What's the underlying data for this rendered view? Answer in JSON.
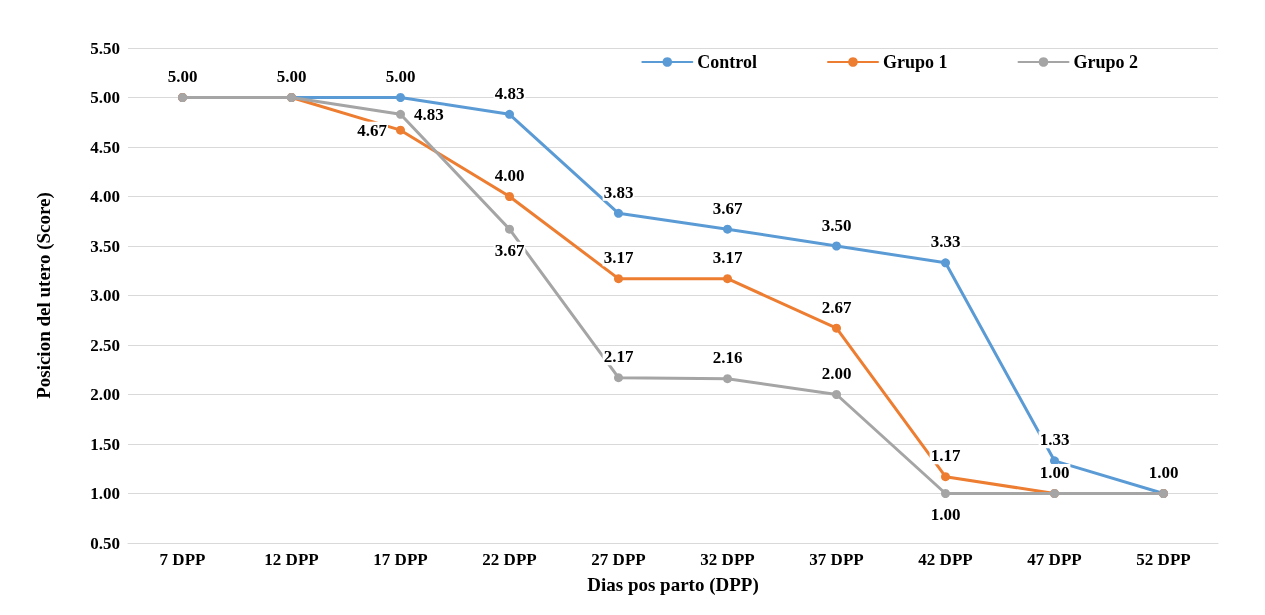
{
  "chart_data": {
    "type": "line",
    "xlabel": "Dias pos parto (DPP)",
    "ylabel": "Posicion del utero (Score)",
    "categories": [
      "7 DPP",
      "12 DPP",
      "17 DPP",
      "22 DPP",
      "27 DPP",
      "32 DPP",
      "37 DPP",
      "42 DPP",
      "47 DPP",
      "52 DPP"
    ],
    "series": [
      {
        "name": "Control",
        "color": "#5b9bd5",
        "values": [
          5.0,
          5.0,
          5.0,
          4.83,
          3.83,
          3.67,
          3.5,
          3.33,
          1.33,
          1.0
        ],
        "value_labels": [
          "5.00",
          "5.00",
          "5.00",
          "4.83",
          "3.83",
          "3.67",
          "3.50",
          "3.33",
          "1.33",
          "1.00"
        ]
      },
      {
        "name": "Grupo 1",
        "color": "#ed7d31",
        "values": [
          5.0,
          5.0,
          4.67,
          4.0,
          3.17,
          3.17,
          2.67,
          1.17,
          1.0,
          1.0
        ],
        "value_labels": [
          null,
          null,
          "4.67",
          "4.00",
          "3.17",
          "3.17",
          "2.67",
          "1.17",
          "1.00",
          null
        ]
      },
      {
        "name": "Grupo 2",
        "color": "#a5a5a5",
        "values": [
          5.0,
          5.0,
          4.83,
          3.67,
          2.17,
          2.16,
          2.0,
          1.0,
          1.0,
          1.0
        ],
        "value_labels": [
          null,
          null,
          "4.83",
          "3.67",
          "2.17",
          "2.16",
          "2.00",
          "1.00",
          null,
          null
        ]
      }
    ],
    "ylim": [
      0.5,
      5.5
    ],
    "yticks": [
      {
        "value": 0.5,
        "label": "0.50"
      },
      {
        "value": 1,
        "label": "1.00"
      },
      {
        "value": 1.5,
        "label": "1.50"
      },
      {
        "value": 2,
        "label": "2.00"
      },
      {
        "value": 2.5,
        "label": "2.50"
      },
      {
        "value": 3,
        "label": "3.00"
      },
      {
        "value": 3.5,
        "label": "3.50"
      },
      {
        "value": 4,
        "label": "4.00"
      },
      {
        "value": 4.5,
        "label": "4.50"
      },
      {
        "value": 5,
        "label": "5.00"
      },
      {
        "value": 5.5,
        "label": "5.50"
      }
    ],
    "grid": "y",
    "legend": "top right",
    "marker": "circle",
    "line_style": "solid"
  }
}
